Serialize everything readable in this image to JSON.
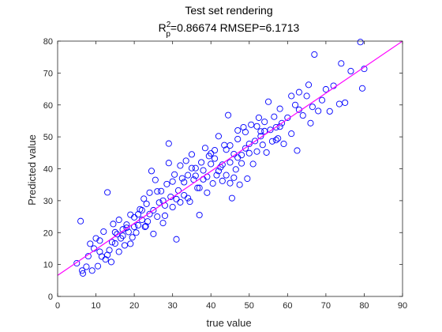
{
  "chart_data": {
    "type": "scatter",
    "title": "Test set rendering",
    "subtitle": {
      "r2_symbol": "R",
      "r2_superscript": "2",
      "r2_subscript": "p",
      "r2_text": "=0.86674  RMSEP=6.1713"
    },
    "xlabel": "true value",
    "ylabel": "Predicted value",
    "xlim": [
      0,
      90
    ],
    "ylim": [
      0,
      80
    ],
    "xticks": [
      "0",
      "10",
      "20",
      "30",
      "40",
      "50",
      "60",
      "70",
      "80",
      "90"
    ],
    "yticks": [
      "0",
      "10",
      "20",
      "30",
      "40",
      "50",
      "60",
      "70",
      "80"
    ],
    "grid": false,
    "fit_line": {
      "color": "#ff00ff",
      "x": [
        0,
        90
      ],
      "y": [
        6.6,
        80
      ]
    },
    "marker": {
      "shape": "circle",
      "color": "#0000ff",
      "fill": "none"
    },
    "points": [
      [
        5.0,
        10.4
      ],
      [
        6.0,
        23.6
      ],
      [
        6.4,
        8.1
      ],
      [
        6.6,
        7.2
      ],
      [
        7.5,
        9.3
      ],
      [
        8.0,
        12.6
      ],
      [
        8.5,
        16.5
      ],
      [
        9.0,
        8.1
      ],
      [
        9.5,
        15.0
      ],
      [
        10.0,
        18.2
      ],
      [
        10.5,
        9.5
      ],
      [
        11.0,
        14.0
      ],
      [
        11.5,
        12.5
      ],
      [
        12.0,
        20.3
      ],
      [
        12.5,
        11.6
      ],
      [
        13.0,
        32.6
      ],
      [
        13.5,
        14.5
      ],
      [
        14.0,
        10.8
      ],
      [
        14.2,
        17.0
      ],
      [
        14.5,
        22.7
      ],
      [
        15.0,
        16.6
      ],
      [
        15.5,
        19.5
      ],
      [
        16.0,
        24.0
      ],
      [
        16.5,
        18.2
      ],
      [
        17.0,
        21.0
      ],
      [
        17.5,
        16.0
      ],
      [
        18.0,
        21.5
      ],
      [
        18.5,
        20.2
      ],
      [
        19.0,
        25.6
      ],
      [
        19.5,
        18.5
      ],
      [
        20.0,
        24.8
      ],
      [
        20.5,
        20.0
      ],
      [
        21.0,
        22.3
      ],
      [
        21.5,
        27.3
      ],
      [
        22.0,
        24.0
      ],
      [
        22.5,
        30.6
      ],
      [
        22.8,
        21.8
      ],
      [
        23.2,
        29.0
      ],
      [
        23.5,
        23.5
      ],
      [
        24.0,
        32.5
      ],
      [
        24.5,
        39.3
      ],
      [
        25.0,
        27.0
      ],
      [
        25.5,
        36.5
      ],
      [
        26.0,
        25.0
      ],
      [
        26.5,
        29.4
      ],
      [
        27.0,
        33.0
      ],
      [
        27.5,
        30.0
      ],
      [
        28.0,
        25.3
      ],
      [
        28.5,
        35.2
      ],
      [
        29.0,
        47.9
      ],
      [
        29.5,
        31.2
      ],
      [
        30.0,
        36.0
      ],
      [
        30.5,
        38.2
      ],
      [
        31.0,
        17.9
      ],
      [
        31.5,
        33.2
      ],
      [
        32.0,
        41.0
      ],
      [
        32.5,
        37.0
      ],
      [
        33.0,
        31.7
      ],
      [
        33.5,
        42.5
      ],
      [
        34.0,
        38.0
      ],
      [
        34.5,
        29.7
      ],
      [
        35.0,
        44.5
      ],
      [
        35.5,
        36.6
      ],
      [
        36.0,
        40.2
      ],
      [
        36.5,
        34.0
      ],
      [
        37.0,
        25.5
      ],
      [
        37.5,
        42.0
      ],
      [
        38.0,
        39.5
      ],
      [
        38.5,
        46.5
      ],
      [
        39.0,
        37.5
      ],
      [
        39.5,
        44.0
      ],
      [
        40.0,
        41.5
      ],
      [
        40.5,
        35.4
      ],
      [
        41.0,
        45.8
      ],
      [
        41.5,
        38.0
      ],
      [
        42.0,
        50.2
      ],
      [
        42.5,
        40.5
      ],
      [
        43.0,
        36.2
      ],
      [
        43.5,
        47.4
      ],
      [
        44.0,
        38.0
      ],
      [
        44.5,
        56.8
      ],
      [
        45.0,
        42.0
      ],
      [
        45.5,
        30.8
      ],
      [
        46.0,
        44.6
      ],
      [
        46.5,
        39.8
      ],
      [
        47.0,
        49.3
      ],
      [
        47.5,
        35.0
      ],
      [
        48.0,
        41.7
      ],
      [
        48.5,
        53.0
      ],
      [
        49.0,
        46.4
      ],
      [
        49.5,
        36.9
      ],
      [
        50.0,
        44.9
      ],
      [
        50.5,
        53.8
      ],
      [
        51.0,
        41.5
      ],
      [
        51.5,
        48.7
      ],
      [
        52.0,
        45.4
      ],
      [
        52.5,
        56.0
      ],
      [
        53.0,
        50.2
      ],
      [
        53.5,
        47.5
      ],
      [
        54.0,
        54.7
      ],
      [
        54.5,
        45.1
      ],
      [
        55.0,
        61.0
      ],
      [
        55.5,
        52.2
      ],
      [
        56.0,
        48.6
      ],
      [
        56.5,
        56.3
      ],
      [
        57.0,
        53.0
      ],
      [
        57.5,
        49.5
      ],
      [
        58.0,
        58.8
      ],
      [
        58.5,
        54.3
      ],
      [
        59.0,
        47.8
      ],
      [
        60.0,
        56.0
      ],
      [
        61.0,
        51.0
      ],
      [
        62.0,
        60.0
      ],
      [
        62.5,
        45.7
      ],
      [
        63.0,
        58.5
      ],
      [
        64.0,
        56.7
      ],
      [
        65.0,
        62.8
      ],
      [
        65.5,
        66.3
      ],
      [
        66.0,
        54.3
      ],
      [
        66.5,
        59.4
      ],
      [
        67.0,
        75.8
      ],
      [
        68.0,
        58.1
      ],
      [
        69.0,
        61.5
      ],
      [
        70.0,
        64.9
      ],
      [
        71.0,
        58.0
      ],
      [
        72.0,
        66.0
      ],
      [
        73.5,
        60.3
      ],
      [
        74.0,
        73.0
      ],
      [
        75.0,
        60.7
      ],
      [
        76.5,
        70.6
      ],
      [
        79.0,
        79.7
      ],
      [
        79.5,
        65.2
      ],
      [
        80.0,
        71.3
      ],
      [
        21.0,
        25.7
      ],
      [
        22.0,
        27.0
      ],
      [
        18.0,
        22.5
      ],
      [
        27.5,
        23.0
      ],
      [
        33.0,
        35.8
      ],
      [
        39.0,
        32.5
      ],
      [
        43.0,
        41.3
      ],
      [
        47.0,
        43.5
      ],
      [
        53.0,
        51.7
      ],
      [
        58.0,
        53.2
      ],
      [
        61.0,
        62.8
      ],
      [
        35.0,
        40.2
      ],
      [
        25.0,
        19.6
      ],
      [
        15.0,
        20.1
      ],
      [
        11.0,
        17.5
      ],
      [
        37.0,
        34.0
      ],
      [
        45.0,
        35.5
      ],
      [
        31.0,
        30.5
      ],
      [
        29.0,
        41.8
      ],
      [
        41.0,
        43.2
      ],
      [
        49.0,
        51.5
      ],
      [
        57.0,
        49.0
      ],
      [
        63.0,
        64.0
      ],
      [
        24.0,
        25.8
      ],
      [
        16.0,
        14.0
      ],
      [
        13.0,
        13.0
      ],
      [
        36.0,
        37.8
      ],
      [
        40.0,
        44.8
      ],
      [
        42.0,
        39.3
      ],
      [
        44.0,
        46.0
      ],
      [
        46.0,
        37.2
      ],
      [
        48.0,
        44.3
      ],
      [
        50.0,
        47.8
      ],
      [
        52.0,
        53.3
      ],
      [
        54.0,
        51.8
      ],
      [
        38.0,
        36.7
      ],
      [
        34.0,
        30.8
      ],
      [
        28.0,
        28.5
      ],
      [
        26.0,
        32.9
      ],
      [
        20.0,
        21.8
      ],
      [
        23.0,
        22.0
      ],
      [
        19.0,
        16.5
      ],
      [
        17.0,
        19.0
      ],
      [
        32.0,
        29.5
      ],
      [
        30.0,
        28.0
      ],
      [
        47.0,
        52.0
      ],
      [
        45.0,
        47.3
      ]
    ]
  }
}
